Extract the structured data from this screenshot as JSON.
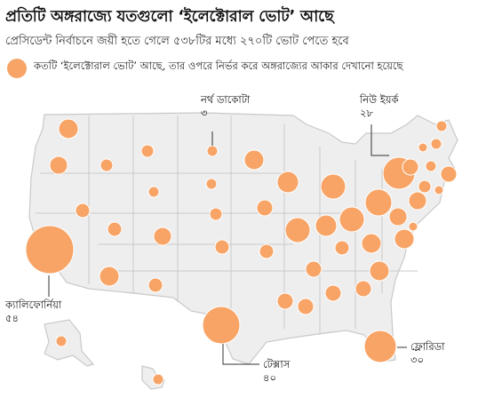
{
  "header": {
    "title": "প্রতিটি অঙ্গরাজ্যে যতগুলো ‘ইলেক্টোরাল ভোট’ আছে",
    "subtitle": "প্রেসিডেন্ট নির্বাচনে জয়ী হতে গেলে ৫৩৮টির মধ্যে ২৭০টি ভোট পেতে হবে"
  },
  "legend": {
    "text": "কতটি ‘ইলেক্টোরাল ভোট’ আছে, তার ওপরে নির্ভর করে অঙ্গরাজ্যের আকার দেখানো হয়েছে",
    "color": "#F7A466"
  },
  "callouts": {
    "north_dakota": {
      "name": "নর্থ ডাকোটা",
      "votes": "৩"
    },
    "new_york": {
      "name": "নিউ ইয়র্ক",
      "votes": "২৮"
    },
    "california": {
      "name": "ক্যালিফোর্নিয়া",
      "votes": "৫৪"
    },
    "texas": {
      "name": "টেক্সাস",
      "votes": "৪০"
    },
    "florida": {
      "name": "ফ্লোরিডা",
      "votes": "৩০"
    }
  },
  "chart_data": {
    "type": "proportional-symbol-map",
    "series": [
      {
        "state": "নর্থ ডাকোটা",
        "votes": 3
      },
      {
        "state": "নিউ ইয়র্ক",
        "votes": 28
      },
      {
        "state": "ক্যালিফোর্নিয়া",
        "votes": 54
      },
      {
        "state": "টেক্সাস",
        "votes": 40
      },
      {
        "state": "ফ্লোরিডা",
        "votes": 30
      }
    ],
    "total_votes": 538,
    "votes_to_win": 270,
    "bubble_color": "#F7A466",
    "map_fill": "#eeeeee",
    "border_color": "#c9c9c9"
  }
}
